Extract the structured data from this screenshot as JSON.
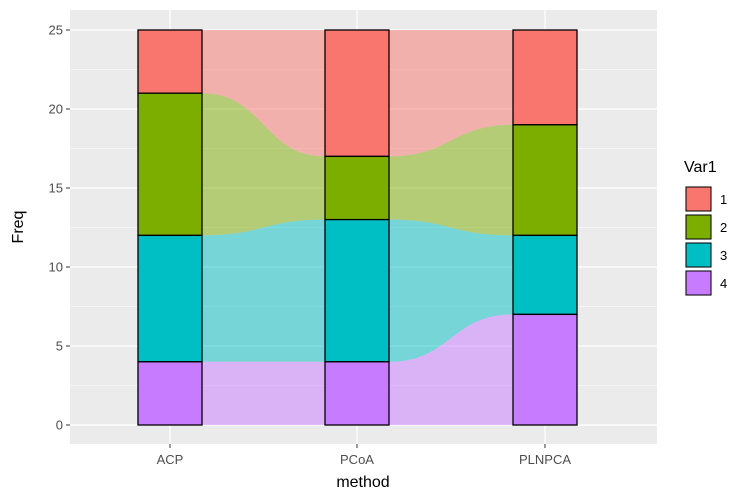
{
  "chart_data": {
    "type": "bar",
    "subtype": "stacked alluvial",
    "xlabel": "method",
    "ylabel": "Freq",
    "categories": [
      "ACP",
      "PCoA",
      "PLNPCA"
    ],
    "ylim": [
      0,
      25
    ],
    "yticks": [
      0,
      5,
      10,
      15,
      20,
      25
    ],
    "grid": true,
    "legend": {
      "title": "Var1",
      "placement": "right"
    },
    "series": [
      {
        "name": "1",
        "color": "#F8766D",
        "values": [
          4,
          8,
          6
        ]
      },
      {
        "name": "2",
        "color": "#7CAE00",
        "values": [
          9,
          4,
          7
        ]
      },
      {
        "name": "3",
        "color": "#00BFC4",
        "values": [
          8,
          9,
          5
        ]
      },
      {
        "name": "4",
        "color": "#C77CFF",
        "values": [
          4,
          4,
          7
        ]
      }
    ]
  }
}
